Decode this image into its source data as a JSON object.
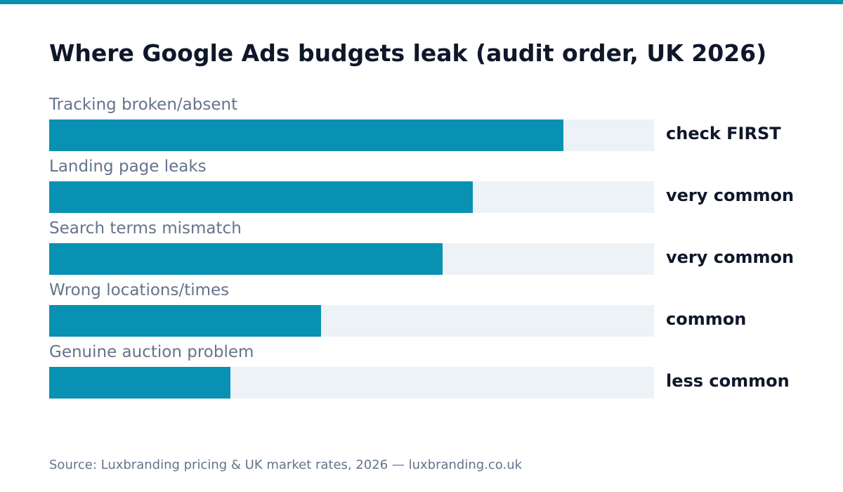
{
  "colors": {
    "accent": "#0891b2",
    "track": "#edf2f7",
    "title": "#0f172a",
    "muted": "#64748b"
  },
  "chart_data": {
    "type": "bar",
    "orientation": "horizontal",
    "title": "Where Google Ads budgets leak (audit order, UK 2026)",
    "categories": [
      "Tracking broken/absent",
      "Landing page leaks",
      "Search terms mismatch",
      "Wrong locations/times",
      "Genuine auction problem"
    ],
    "values": [
      0.85,
      0.7,
      0.65,
      0.45,
      0.3
    ],
    "value_labels": [
      "check FIRST",
      "very common",
      "very common",
      "common",
      "less common"
    ],
    "xlim": [
      0,
      1
    ],
    "grid": false
  },
  "footer": {
    "source": "Source: Luxbranding pricing & UK market rates, 2026 — luxbranding.co.uk"
  }
}
